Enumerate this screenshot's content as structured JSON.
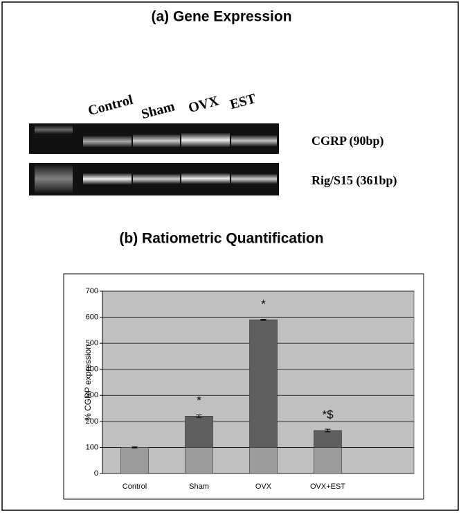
{
  "header": {
    "title": "(a) Gene Expression"
  },
  "gel": {
    "lanes": [
      "Control",
      "Sham",
      "OVX",
      "EST"
    ],
    "bands": [
      "CGRP (90bp)",
      "Rig/S15 (361bp)"
    ]
  },
  "chart_data": {
    "type": "bar",
    "title": "(b) Ratiometric Quantification",
    "y_label": "% CGRP expression",
    "categories": [
      "Control",
      "Sham",
      "OVX",
      "OVX+EST"
    ],
    "series": [
      {
        "color": "#9c9c9c",
        "values": [
          100,
          100,
          100,
          100
        ]
      },
      {
        "color": "#5e5e5e",
        "values": [
          0,
          120,
          490,
          65
        ]
      }
    ],
    "errors": [
      2,
      5,
      2,
      5
    ],
    "annotations": [
      null,
      "*",
      "*",
      "*$"
    ],
    "ylim": [
      0,
      700
    ],
    "yticks": [
      0,
      100,
      200,
      300,
      400,
      500,
      600,
      700
    ],
    "grid": true
  }
}
